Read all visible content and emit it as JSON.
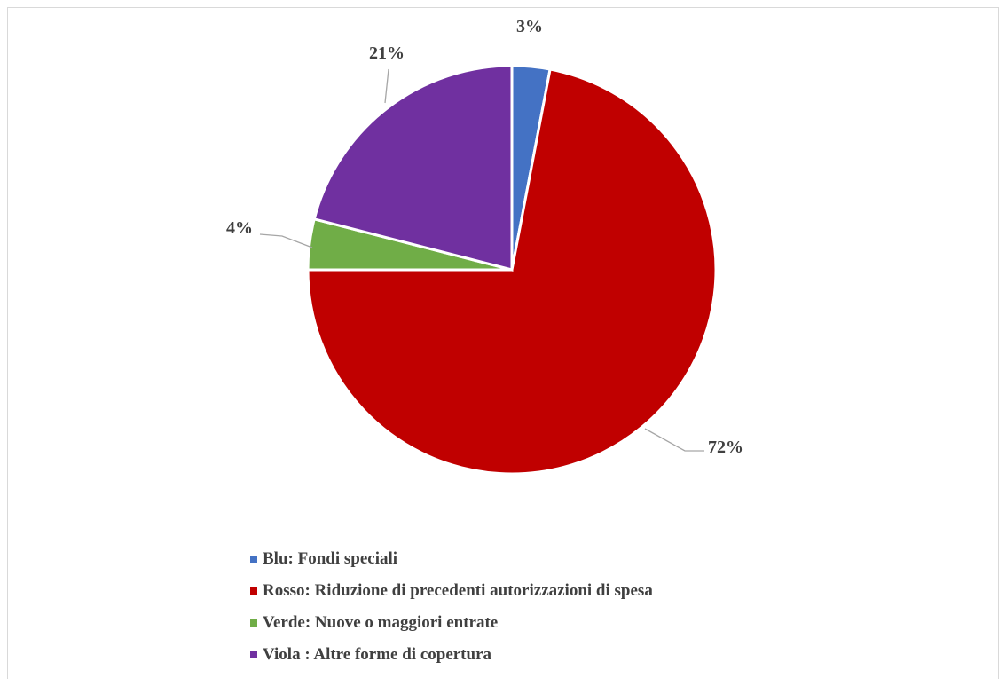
{
  "chart_data": {
    "type": "pie",
    "title": "",
    "slices": [
      {
        "label": "Blu: Fondi speciali",
        "value": 3,
        "data_label": "3%",
        "color": "#4472C4"
      },
      {
        "label": "Rosso: Riduzione di precedenti autorizzazioni di spesa",
        "value": 72,
        "data_label": "72%",
        "color": "#C00000"
      },
      {
        "label": "Verde: Nuove o maggiori entrate",
        "value": 4,
        "data_label": "4%",
        "color": "#70AD47"
      },
      {
        "label": "Viola : Altre forme di copertura",
        "value": 21,
        "data_label": "21%",
        "color": "#7030A0"
      }
    ],
    "legend_position": "bottom",
    "data_labels": "outside-end with leader lines"
  }
}
